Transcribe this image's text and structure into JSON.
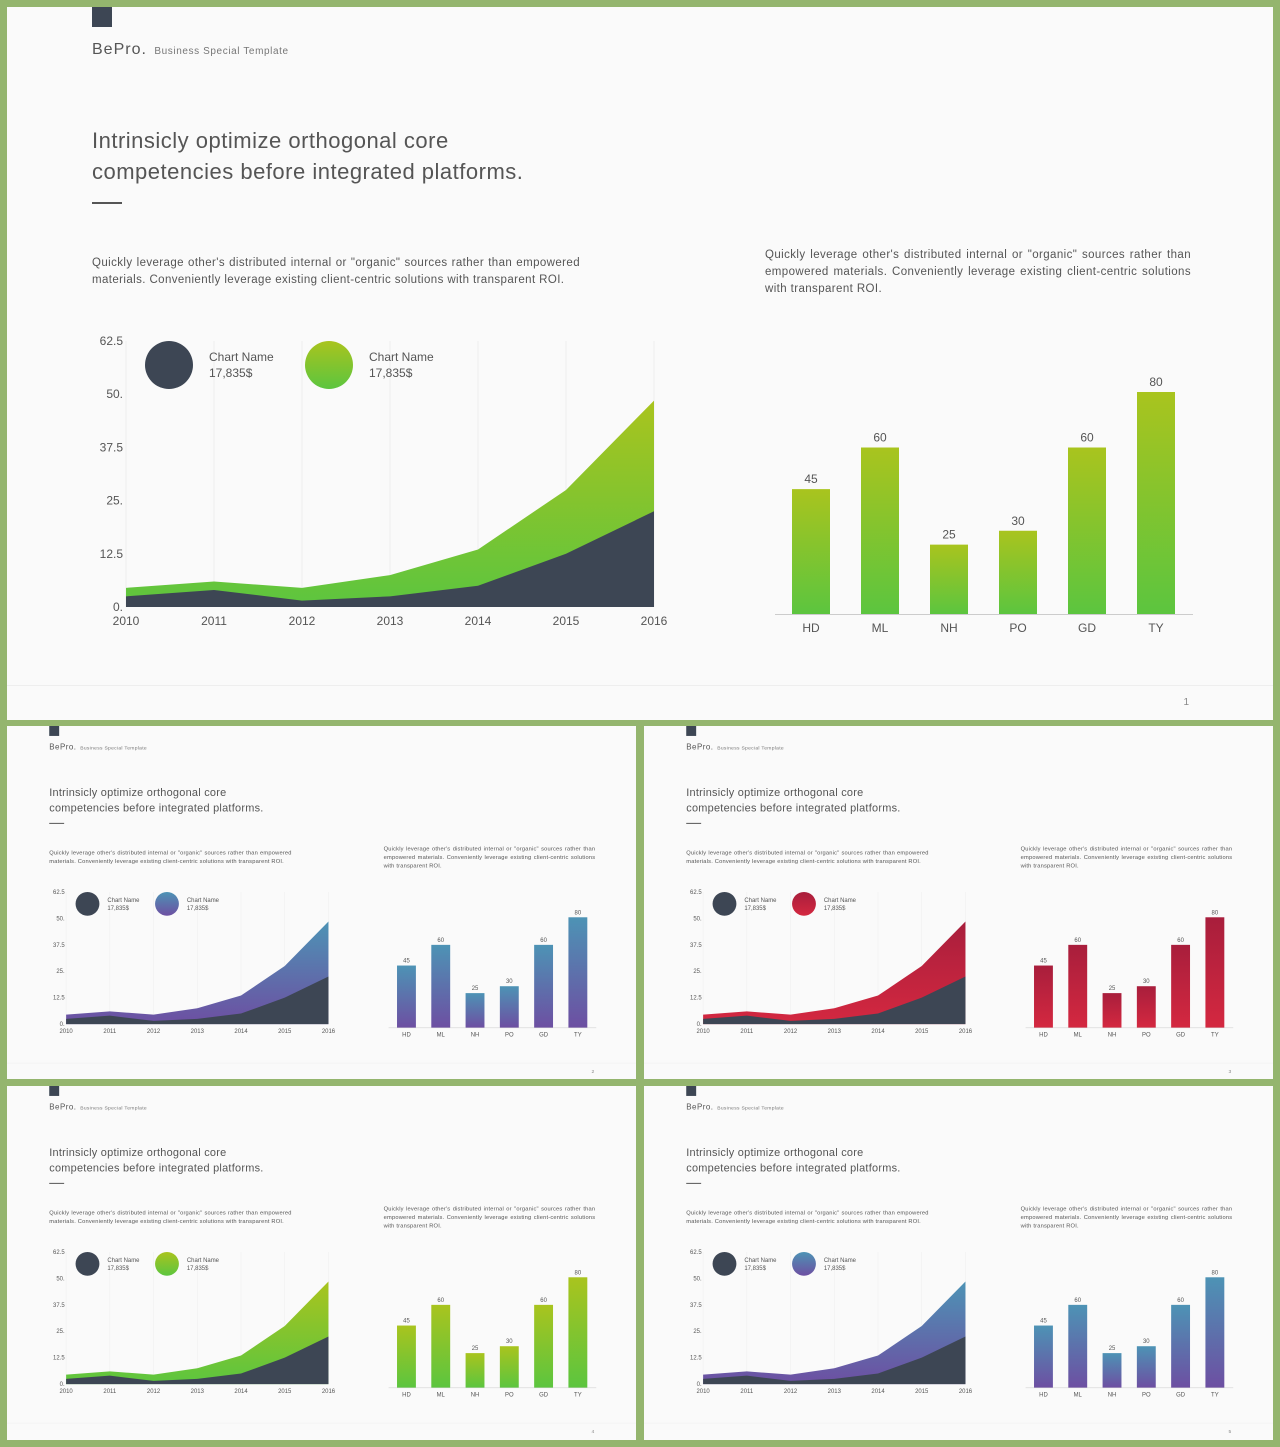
{
  "brand": {
    "name": "BePro.",
    "tagline": "Business  Special  Template"
  },
  "title_line1": "Intrinsicly optimize orthogonal core",
  "title_line2": "competencies before integrated platforms.",
  "desc_left": "Quickly leverage other's distributed internal or \"organic\" sources rather than empowered materials. Conveniently leverage existing client-centric solutions with transparent ROI.",
  "desc_right": "Quickly leverage other's distributed internal or \"organic\" sources rather than empowered materials. Conveniently leverage existing client-centric solutions with transparent ROI.",
  "legend": [
    {
      "name": "Chart  Name",
      "value": "17,835$"
    },
    {
      "name": "Chart  Name",
      "value": "17,835$"
    }
  ],
  "colors": {
    "dark": "#3d4654",
    "frame": "#94b56e"
  },
  "slides": [
    {
      "page": "1",
      "accent": "green",
      "colors": [
        "#a9c41e",
        "#5cc53f"
      ]
    },
    {
      "page": "2",
      "accent": "purple",
      "colors": [
        "#4d93b5",
        "#6d4fa2"
      ]
    },
    {
      "page": "3",
      "accent": "red",
      "colors": [
        "#a81e3c",
        "#d42840"
      ]
    },
    {
      "page": "4",
      "accent": "green",
      "colors": [
        "#a9c41e",
        "#5cc53f"
      ]
    },
    {
      "page": "5",
      "accent": "purple",
      "colors": [
        "#4d93b5",
        "#6d4fa2"
      ]
    }
  ],
  "chart_data": [
    {
      "type": "area",
      "x": [
        2010,
        2011,
        2012,
        2013,
        2014,
        2015,
        2016
      ],
      "y_ticks": [
        "0.",
        "12.5",
        "25.",
        "37.5",
        "50.",
        "62.5"
      ],
      "ylim": [
        0,
        62.5
      ],
      "series": [
        {
          "values": [
            2.5,
            4,
            1.5,
            2.5,
            5,
            12.5,
            22.5
          ]
        },
        {
          "values": [
            4.5,
            6,
            4.5,
            7.5,
            13.5,
            27.5,
            48.5
          ]
        }
      ]
    },
    {
      "type": "bar",
      "categories": [
        "HD",
        "ML",
        "NH",
        "PO",
        "GD",
        "TY"
      ],
      "values": [
        45,
        60,
        25,
        30,
        60,
        80
      ],
      "ylim": [
        0,
        80
      ]
    }
  ]
}
